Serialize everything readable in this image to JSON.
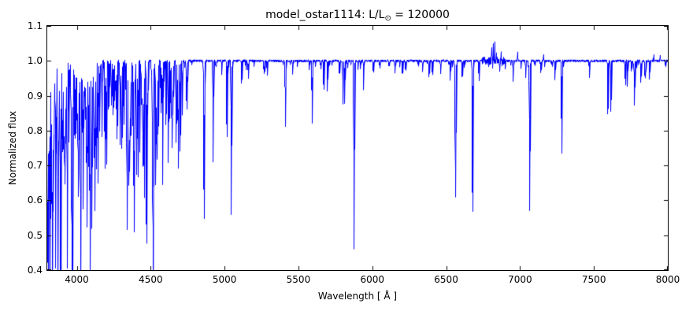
{
  "figure": {
    "title": {
      "prefix": "model_ostar1114: L/L",
      "subscript": "⊙",
      "suffix": " = 120000"
    },
    "xlabel": "Wavelength [ Å ]",
    "ylabel": "Normalized flux"
  },
  "chart_data": {
    "type": "line",
    "title": "model_ostar1114: L/L⊙ = 120000",
    "xlabel": "Wavelength [ Å ]",
    "ylabel": "Normalized flux",
    "line_color": "#0000ff",
    "axes_color": "#000000",
    "background": "#ffffff",
    "grid": false,
    "legend": false,
    "xlim": [
      3800,
      8000
    ],
    "ylim": [
      0.4,
      1.1
    ],
    "xticks": [
      4000,
      4500,
      5000,
      5500,
      6000,
      6500,
      7000,
      7500,
      8000
    ],
    "xtick_labels": [
      "4000",
      "4500",
      "5000",
      "5500",
      "6000",
      "6500",
      "7000",
      "7500",
      "8000"
    ],
    "yticks": [
      0.4,
      0.5,
      0.6,
      0.7,
      0.8,
      0.9,
      1.0,
      1.1
    ],
    "ytick_labels": [
      "0.4",
      "0.5",
      "0.6",
      "0.7",
      "0.8",
      "0.9",
      "1.0",
      "1.1"
    ],
    "continuum_flux": 1.0,
    "absorption_lines_format": [
      "wavelength_A",
      "depth_below_continuum",
      "sigma_A"
    ],
    "absorption_lines": [
      [
        3798,
        0.3,
        2.0
      ],
      [
        3813,
        0.2,
        1.5
      ],
      [
        3820,
        0.38,
        2.0
      ],
      [
        3830,
        0.25,
        1.5
      ],
      [
        3835,
        0.48,
        2.2
      ],
      [
        3846,
        0.18,
        1.5
      ],
      [
        3856,
        0.28,
        1.8
      ],
      [
        3862,
        0.22,
        1.5
      ],
      [
        3871,
        0.3,
        1.8
      ],
      [
        3878,
        0.2,
        1.5
      ],
      [
        3889,
        0.48,
        2.2
      ],
      [
        3900,
        0.18,
        1.5
      ],
      [
        3912,
        0.2,
        1.5
      ],
      [
        3920,
        0.3,
        1.8
      ],
      [
        3926,
        0.25,
        1.5
      ],
      [
        3935,
        0.44,
        2.0
      ],
      [
        3947,
        0.22,
        1.5
      ],
      [
        3964,
        0.3,
        1.8
      ],
      [
        3970,
        0.48,
        2.2
      ],
      [
        3984,
        0.15,
        1.5
      ],
      [
        3995,
        0.22,
        1.5
      ],
      [
        4009,
        0.22,
        1.8
      ],
      [
        4026,
        0.44,
        2.2
      ],
      [
        4041,
        0.18,
        1.5
      ],
      [
        4069,
        0.3,
        1.8
      ],
      [
        4076,
        0.25,
        1.5
      ],
      [
        4089,
        0.32,
        1.8
      ],
      [
        4101,
        0.48,
        2.5
      ],
      [
        4116,
        0.25,
        1.5
      ],
      [
        4121,
        0.28,
        1.8
      ],
      [
        4132,
        0.18,
        1.5
      ],
      [
        4144,
        0.28,
        1.8
      ],
      [
        4153,
        0.2,
        1.5
      ],
      [
        4169,
        0.18,
        1.5
      ],
      [
        4200,
        0.3,
        2.0
      ],
      [
        4215,
        0.15,
        1.5
      ],
      [
        4233,
        0.12,
        1.5
      ],
      [
        4267,
        0.15,
        1.5
      ],
      [
        4317,
        0.15,
        1.5
      ],
      [
        4340,
        0.49,
        2.5
      ],
      [
        4350,
        0.15,
        1.5
      ],
      [
        4367,
        0.15,
        1.5
      ],
      [
        4379,
        0.2,
        1.5
      ],
      [
        4387,
        0.28,
        1.8
      ],
      [
        4415,
        0.2,
        1.5
      ],
      [
        4437,
        0.12,
        1.5
      ],
      [
        4471,
        0.45,
        2.2
      ],
      [
        4481,
        0.12,
        1.5
      ],
      [
        4511,
        0.16,
        1.5
      ],
      [
        4515,
        0.14,
        1.5
      ],
      [
        4541,
        0.26,
        2.0
      ],
      [
        4552,
        0.2,
        1.5
      ],
      [
        4568,
        0.16,
        1.5
      ],
      [
        4575,
        0.12,
        1.5
      ],
      [
        4604,
        0.14,
        1.5
      ],
      [
        4620,
        0.12,
        1.5
      ],
      [
        4631,
        0.12,
        1.5
      ],
      [
        4642,
        0.14,
        1.5
      ],
      [
        4654,
        0.1,
        1.5
      ],
      [
        4686,
        0.31,
        2.2
      ],
      [
        4713,
        0.16,
        1.5
      ],
      [
        4861,
        0.46,
        2.5
      ],
      [
        4922,
        0.29,
        1.8
      ],
      [
        5015,
        0.22,
        1.8
      ],
      [
        5045,
        0.45,
        2.0
      ],
      [
        5160,
        0.05,
        1.5
      ],
      [
        5270,
        0.04,
        1.5
      ],
      [
        5411,
        0.19,
        2.0
      ],
      [
        5460,
        0.04,
        1.5
      ],
      [
        5592,
        0.18,
        1.8
      ],
      [
        5696,
        0.09,
        1.5
      ],
      [
        5801,
        0.13,
        1.8
      ],
      [
        5812,
        0.1,
        1.5
      ],
      [
        5876,
        0.54,
        2.2
      ],
      [
        5940,
        0.04,
        1.5
      ],
      [
        6004,
        0.03,
        1.5
      ],
      [
        6203,
        0.04,
        1.5
      ],
      [
        6340,
        0.03,
        1.5
      ],
      [
        6406,
        0.04,
        1.5
      ],
      [
        6461,
        0.04,
        1.5
      ],
      [
        6527,
        0.06,
        1.5
      ],
      [
        6563,
        0.4,
        2.8
      ],
      [
        6678,
        0.43,
        2.2
      ],
      [
        6721,
        0.06,
        1.5
      ],
      [
        7037,
        0.05,
        1.5
      ],
      [
        7065,
        0.44,
        2.2
      ],
      [
        7236,
        0.06,
        1.5
      ],
      [
        7281,
        0.28,
        1.8
      ],
      [
        7468,
        0.05,
        1.5
      ],
      [
        7594,
        0.16,
        1.8
      ],
      [
        7615,
        0.14,
        1.8
      ],
      [
        7712,
        0.07,
        1.5
      ],
      [
        7726,
        0.08,
        1.5
      ],
      [
        7774,
        0.13,
        2.0
      ],
      [
        7816,
        0.06,
        1.5
      ],
      [
        7876,
        0.05,
        1.5
      ]
    ],
    "emission_spikes_format": [
      "wavelength_A",
      "height_above_continuum",
      "sigma_A"
    ],
    "emission_spikes": [
      [
        6808,
        0.04,
        1.5
      ],
      [
        6818,
        0.06,
        1.2
      ],
      [
        6828,
        0.05,
        1.2
      ],
      [
        6840,
        0.03,
        1.5
      ],
      [
        6870,
        0.02,
        1.5
      ],
      [
        6983,
        0.025,
        1.5
      ],
      [
        7160,
        0.02,
        1.5
      ],
      [
        7905,
        0.02,
        1.5
      ],
      [
        7948,
        0.015,
        1.5
      ]
    ],
    "line_forests": [
      {
        "seed": 101,
        "range": [
          3800,
          4750
        ],
        "count": 220,
        "depth": [
          0.02,
          0.3
        ],
        "sigma": [
          0.7,
          2.2
        ],
        "skew_toward_blue": true
      },
      {
        "seed": 202,
        "range": [
          4750,
          8000
        ],
        "count": 80,
        "depth": [
          0.01,
          0.05
        ],
        "sigma": [
          0.8,
          2.0
        ],
        "skew_toward_blue": false
      }
    ],
    "noise": {
      "seed": 12345,
      "base_amp": 0.0035,
      "regions": [
        {
          "range": [
            6740,
            6900
          ],
          "amp": 0.011
        }
      ]
    }
  }
}
